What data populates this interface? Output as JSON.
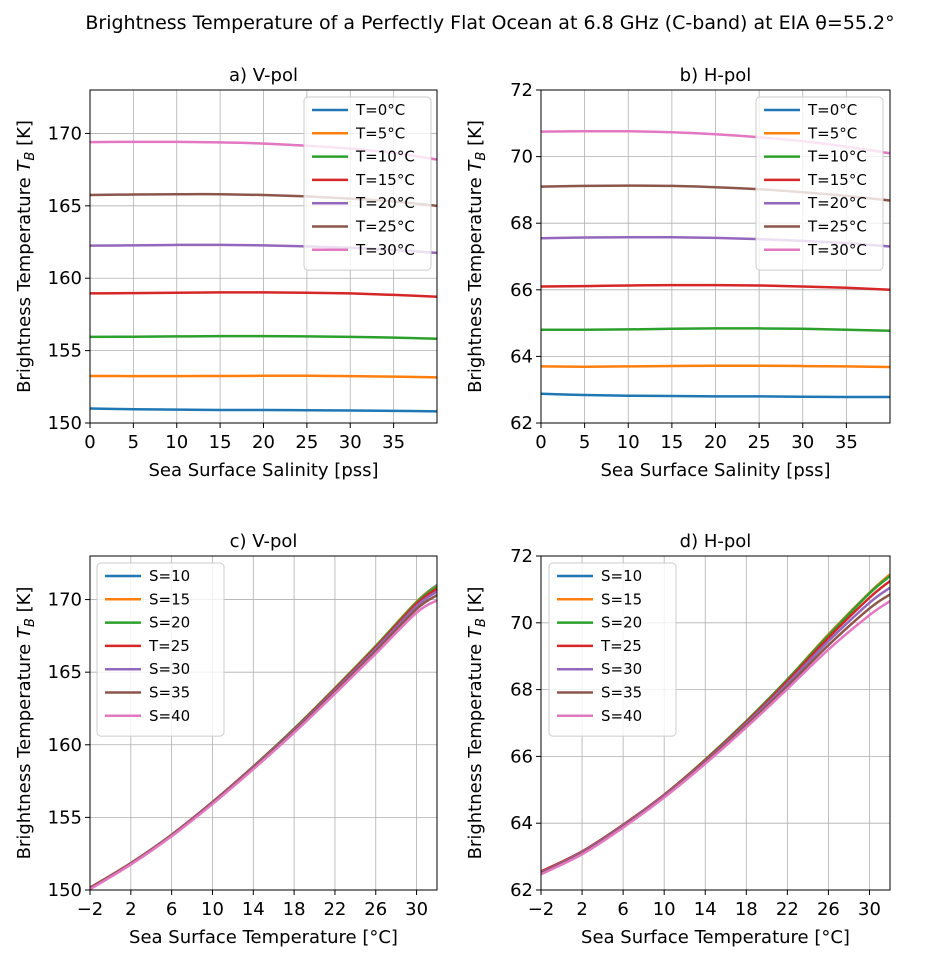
{
  "figure": {
    "suptitle": "Brightness Temperature of a Perfectly Flat Ocean at 6.8 GHz (C-band) at EIA θ=55.2°"
  },
  "chart_data": [
    {
      "type": "line",
      "title": "a) V-pol",
      "xlabel": "Sea Surface Salinity [pss]",
      "ylabel": "Brightness Temperature T_B [K]",
      "xlim": [
        0,
        40
      ],
      "ylim": [
        150,
        173
      ],
      "xticks": [
        0,
        5,
        10,
        15,
        20,
        25,
        30,
        35
      ],
      "yticks": [
        150,
        155,
        160,
        165,
        170
      ],
      "grid": true,
      "legend": "top-right",
      "x": [
        0,
        5,
        10,
        15,
        20,
        25,
        30,
        35,
        40
      ],
      "series": [
        {
          "name": "T=0°C",
          "color": "#1f77b4",
          "values": [
            151.0,
            150.95,
            150.92,
            150.9,
            150.9,
            150.88,
            150.86,
            150.84,
            150.8
          ]
        },
        {
          "name": "T=5°C",
          "color": "#ff7f0e",
          "values": [
            153.25,
            153.24,
            153.24,
            153.25,
            153.26,
            153.26,
            153.24,
            153.2,
            153.15
          ]
        },
        {
          "name": "T=10°C",
          "color": "#2ca02c",
          "values": [
            155.95,
            155.96,
            155.98,
            156.0,
            156.0,
            155.98,
            155.95,
            155.9,
            155.82
          ]
        },
        {
          "name": "T=15°C",
          "color": "#d62728",
          "values": [
            158.95,
            158.97,
            159.0,
            159.02,
            159.02,
            159.0,
            158.95,
            158.85,
            158.72
          ]
        },
        {
          "name": "T=20°C",
          "color": "#9467bd",
          "values": [
            162.25,
            162.27,
            162.3,
            162.3,
            162.27,
            162.2,
            162.1,
            161.95,
            161.75
          ]
        },
        {
          "name": "T=25°C",
          "color": "#8c564b",
          "values": [
            165.75,
            165.78,
            165.8,
            165.8,
            165.75,
            165.65,
            165.5,
            165.3,
            165.0
          ]
        },
        {
          "name": "T=30°C",
          "color": "#e377c2",
          "values": [
            169.4,
            169.42,
            169.42,
            169.38,
            169.3,
            169.15,
            168.95,
            168.65,
            168.2
          ]
        }
      ]
    },
    {
      "type": "line",
      "title": "b) H-pol",
      "xlabel": "Sea Surface Salinity [pss]",
      "ylabel": "Brightness Temperature T_B [K]",
      "xlim": [
        0,
        40
      ],
      "ylim": [
        62,
        72
      ],
      "xticks": [
        0,
        5,
        10,
        15,
        20,
        25,
        30,
        35
      ],
      "yticks": [
        62,
        64,
        66,
        68,
        70,
        72
      ],
      "grid": true,
      "legend": "top-right",
      "x": [
        0,
        5,
        10,
        15,
        20,
        25,
        30,
        35,
        40
      ],
      "series": [
        {
          "name": "T=0°C",
          "color": "#1f77b4",
          "values": [
            62.88,
            62.84,
            62.82,
            62.81,
            62.8,
            62.8,
            62.79,
            62.78,
            62.78
          ]
        },
        {
          "name": "T=5°C",
          "color": "#ff7f0e",
          "values": [
            63.7,
            63.69,
            63.7,
            63.71,
            63.72,
            63.72,
            63.71,
            63.7,
            63.68
          ]
        },
        {
          "name": "T=10°C",
          "color": "#2ca02c",
          "values": [
            64.8,
            64.8,
            64.81,
            64.83,
            64.84,
            64.84,
            64.83,
            64.8,
            64.77
          ]
        },
        {
          "name": "T=15°C",
          "color": "#d62728",
          "values": [
            66.1,
            66.11,
            66.13,
            66.14,
            66.14,
            66.13,
            66.1,
            66.06,
            66.0
          ]
        },
        {
          "name": "T=20°C",
          "color": "#9467bd",
          "values": [
            67.55,
            67.57,
            67.58,
            67.58,
            67.56,
            67.52,
            67.47,
            67.4,
            67.3
          ]
        },
        {
          "name": "T=25°C",
          "color": "#8c564b",
          "values": [
            69.1,
            69.12,
            69.13,
            69.12,
            69.08,
            69.02,
            68.93,
            68.82,
            68.68
          ]
        },
        {
          "name": "T=30°C",
          "color": "#e377c2",
          "values": [
            70.75,
            70.76,
            70.76,
            70.73,
            70.67,
            70.58,
            70.46,
            70.3,
            70.1
          ]
        }
      ]
    },
    {
      "type": "line",
      "title": "c) V-pol",
      "xlabel": "Sea Surface Temperature  [°C]",
      "ylabel": "Brightness Temperature T_B [K]",
      "xlim": [
        -2,
        32
      ],
      "ylim": [
        150,
        173
      ],
      "xticks": [
        -2,
        2,
        6,
        10,
        14,
        18,
        22,
        26,
        30
      ],
      "xticklabels": [
        "−2",
        "2",
        "6",
        "10",
        "14",
        "18",
        "22",
        "26",
        "30"
      ],
      "yticks": [
        150,
        155,
        160,
        165,
        170
      ],
      "grid": true,
      "legend": "top-left",
      "x": [
        -2,
        2,
        6,
        10,
        14,
        18,
        22,
        26,
        30,
        32
      ],
      "series": [
        {
          "name": "S=10",
          "color": "#1f77b4",
          "values": [
            150.15,
            151.85,
            153.8,
            156.05,
            158.5,
            161.1,
            163.9,
            166.8,
            169.85,
            171.0
          ]
        },
        {
          "name": "S=15",
          "color": "#ff7f0e",
          "values": [
            150.15,
            151.85,
            153.8,
            156.05,
            158.5,
            161.1,
            163.9,
            166.8,
            169.85,
            170.95
          ]
        },
        {
          "name": "S=20",
          "color": "#2ca02c",
          "values": [
            150.15,
            151.85,
            153.8,
            156.05,
            158.5,
            161.1,
            163.88,
            166.78,
            169.8,
            170.9
          ]
        },
        {
          "name": "T=25",
          "color": "#d62728",
          "values": [
            150.15,
            151.85,
            153.8,
            156.05,
            158.48,
            161.05,
            163.83,
            166.7,
            169.7,
            170.75
          ]
        },
        {
          "name": "S=30",
          "color": "#9467bd",
          "values": [
            150.12,
            151.83,
            153.78,
            156.02,
            158.45,
            161.0,
            163.75,
            166.6,
            169.55,
            170.55
          ]
        },
        {
          "name": "S=35",
          "color": "#8c564b",
          "values": [
            150.1,
            151.8,
            153.75,
            155.98,
            158.4,
            160.92,
            163.65,
            166.45,
            169.35,
            170.3
          ]
        },
        {
          "name": "S=40",
          "color": "#e377c2",
          "values": [
            150.05,
            151.75,
            153.7,
            155.92,
            158.32,
            160.83,
            163.52,
            166.28,
            169.1,
            169.95
          ]
        }
      ]
    },
    {
      "type": "line",
      "title": "d) H-pol",
      "xlabel": "Sea Surface Temperature  [°C]",
      "ylabel": "Brightness Temperature T_B [K]",
      "xlim": [
        -2,
        32
      ],
      "ylim": [
        62,
        72
      ],
      "xticks": [
        -2,
        2,
        6,
        10,
        14,
        18,
        22,
        26,
        30
      ],
      "xticklabels": [
        "−2",
        "2",
        "6",
        "10",
        "14",
        "18",
        "22",
        "26",
        "30"
      ],
      "yticks": [
        62,
        64,
        66,
        68,
        70,
        72
      ],
      "grid": true,
      "legend": "top-left",
      "x": [
        -2,
        2,
        6,
        10,
        14,
        18,
        22,
        26,
        30,
        32
      ],
      "series": [
        {
          "name": "S=10",
          "color": "#1f77b4",
          "values": [
            62.55,
            63.15,
            63.95,
            64.85,
            65.9,
            67.05,
            68.3,
            69.65,
            70.9,
            71.45
          ]
        },
        {
          "name": "S=15",
          "color": "#ff7f0e",
          "values": [
            62.55,
            63.15,
            63.95,
            64.85,
            65.9,
            67.05,
            68.3,
            69.65,
            70.9,
            71.45
          ]
        },
        {
          "name": "S=20",
          "color": "#2ca02c",
          "values": [
            62.55,
            63.15,
            63.95,
            64.85,
            65.9,
            67.05,
            68.3,
            69.62,
            70.88,
            71.4
          ]
        },
        {
          "name": "T=25",
          "color": "#d62728",
          "values": [
            62.55,
            63.15,
            63.95,
            64.85,
            65.88,
            67.02,
            68.25,
            69.55,
            70.75,
            71.25
          ]
        },
        {
          "name": "S=30",
          "color": "#9467bd",
          "values": [
            62.52,
            63.13,
            63.93,
            64.83,
            65.85,
            66.98,
            68.18,
            69.45,
            70.6,
            71.05
          ]
        },
        {
          "name": "S=35",
          "color": "#8c564b",
          "values": [
            62.5,
            63.1,
            63.9,
            64.8,
            65.82,
            66.93,
            68.1,
            69.33,
            70.43,
            70.85
          ]
        },
        {
          "name": "S=40",
          "color": "#e377c2",
          "values": [
            62.47,
            63.07,
            63.87,
            64.77,
            65.78,
            66.87,
            68.02,
            69.2,
            70.23,
            70.65
          ]
        }
      ]
    }
  ]
}
